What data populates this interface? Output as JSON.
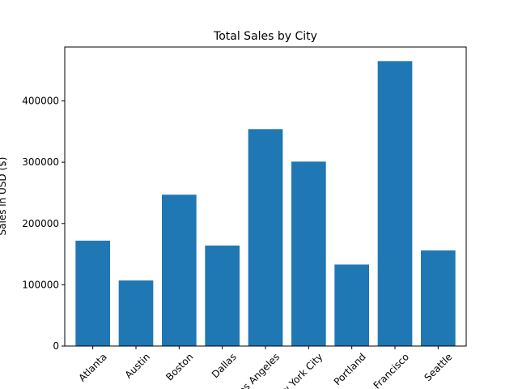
{
  "colors": {
    "bar": "#1f77b4",
    "axis": "#000000",
    "background": "#ffffff"
  },
  "chart_data": {
    "type": "bar",
    "title": "Total Sales by City",
    "xlabel": "",
    "ylabel": "Sales in USD ($)",
    "categories": [
      "Atlanta",
      "Austin",
      "Boston",
      "Dallas",
      "Los Angeles",
      "New York City",
      "Portland",
      "San Francisco",
      "Seattle"
    ],
    "values": [
      172000,
      107000,
      247000,
      164000,
      354000,
      301000,
      133000,
      465000,
      156000
    ],
    "ylim": [
      0,
      488000
    ],
    "yticks": [
      0,
      100000,
      200000,
      300000,
      400000
    ],
    "ytick_labels": [
      "0",
      "100000",
      "200000",
      "300000",
      "400000"
    ],
    "grid": false,
    "legend": "none"
  }
}
